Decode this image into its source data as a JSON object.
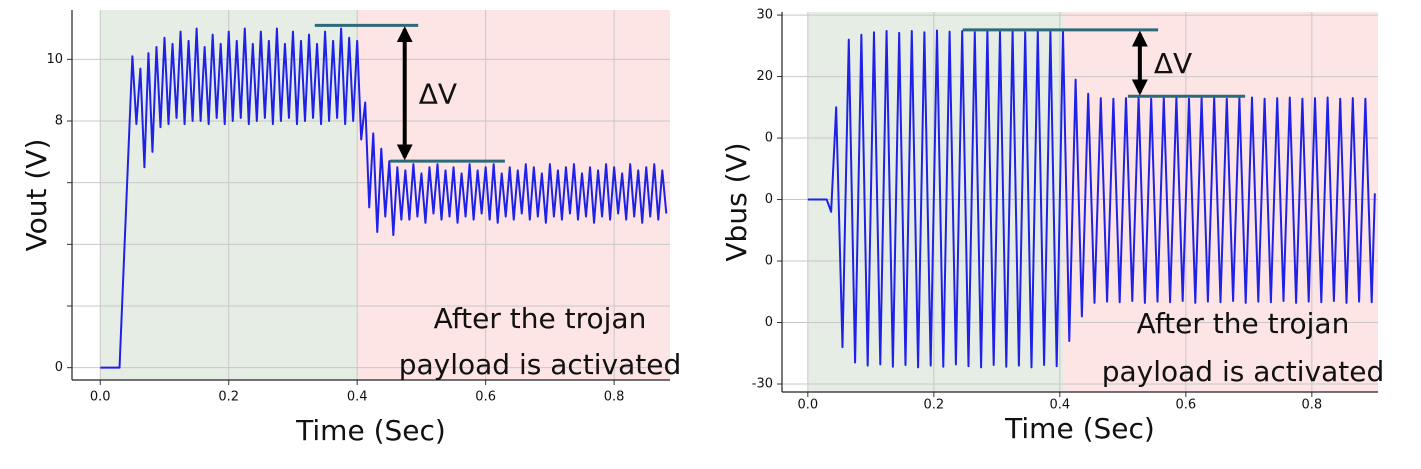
{
  "chart_data": [
    {
      "type": "line",
      "xlabel": "Time (Sec)",
      "ylabel": "Vout (V)",
      "xlim": [
        -0.044,
        0.887
      ],
      "ylim": [
        -0.4,
        11.6
      ],
      "xticks": [
        {
          "value": 0,
          "label": "0.0"
        },
        0.2,
        0.4,
        0.6,
        0.8
      ],
      "yticks": [
        0,
        {
          "value": 2,
          "label": null
        },
        {
          "value": 4,
          "label": null
        },
        {
          "value": 6,
          "label": null
        },
        8,
        10
      ],
      "grid": true,
      "regions": [
        {
          "x": [
            0,
            0.4
          ],
          "color": "#e6ede5"
        },
        {
          "x": [
            0.4,
            0.887
          ],
          "color": "#fde4e5"
        }
      ],
      "x": [
        0,
        0.03,
        0.045,
        0.05,
        0.05625,
        0.0625,
        0.06875,
        0.075,
        0.08125,
        0.0875,
        0.09375,
        0.1,
        0.10625,
        0.1125,
        0.11875,
        0.125,
        0.13125,
        0.1375,
        0.14375,
        0.15,
        0.15625,
        0.1625,
        0.16875,
        0.175,
        0.18125,
        0.1875,
        0.19375,
        0.2,
        0.20625,
        0.2125,
        0.21875,
        0.225,
        0.23125,
        0.2375,
        0.24375,
        0.25,
        0.25625,
        0.2625,
        0.26875,
        0.275,
        0.28125,
        0.2875,
        0.29375,
        0.3,
        0.30625,
        0.3125,
        0.31875,
        0.325,
        0.33125,
        0.3375,
        0.34375,
        0.35,
        0.35625,
        0.3625,
        0.36875,
        0.375,
        0.38125,
        0.3875,
        0.39375,
        0.4,
        0.40625,
        0.4125,
        0.41875,
        0.425,
        0.43125,
        0.4375,
        0.44375,
        0.45,
        0.45625,
        0.4625,
        0.46875,
        0.475,
        0.48125,
        0.4875,
        0.49375,
        0.5,
        0.50625,
        0.5125,
        0.51875,
        0.525,
        0.53125,
        0.5375,
        0.54375,
        0.55,
        0.55625,
        0.5625,
        0.56875,
        0.575,
        0.58125,
        0.5875,
        0.59375,
        0.6,
        0.60625,
        0.6125,
        0.61875,
        0.625,
        0.63125,
        0.6375,
        0.64375,
        0.65,
        0.65625,
        0.6625,
        0.66875,
        0.675,
        0.68125,
        0.6875,
        0.69375,
        0.7,
        0.70625,
        0.7125,
        0.71875,
        0.725,
        0.73125,
        0.7375,
        0.74375,
        0.75,
        0.75625,
        0.7625,
        0.76875,
        0.775,
        0.78125,
        0.7875,
        0.79375,
        0.8,
        0.80625,
        0.8125,
        0.81875,
        0.825,
        0.83125,
        0.8375,
        0.84375,
        0.85,
        0.85625,
        0.8625,
        0.86875,
        0.875,
        0.88125
      ],
      "series": [
        {
          "color": "#1f22e6",
          "values": [
            0,
            0,
            7.6,
            10.1,
            7.9,
            9.7,
            6.5,
            10.2,
            7.0,
            10.4,
            7.8,
            10.7,
            7.9,
            10.5,
            8.1,
            10.9,
            7.9,
            10.6,
            8.0,
            11.0,
            8.0,
            10.4,
            7.9,
            10.8,
            8.1,
            10.5,
            7.9,
            10.9,
            8.0,
            10.6,
            8.1,
            11.0,
            7.9,
            10.5,
            8.0,
            10.9,
            8.1,
            10.6,
            7.9,
            11.0,
            8.0,
            10.5,
            8.1,
            10.9,
            7.9,
            10.6,
            8.0,
            10.8,
            8.1,
            10.5,
            7.9,
            10.9,
            8.0,
            10.6,
            8.1,
            11.0,
            7.9,
            10.7,
            8.0,
            10.6,
            7.4,
            8.6,
            5.2,
            7.6,
            4.4,
            7.1,
            4.9,
            6.7,
            4.3,
            6.5,
            4.8,
            6.4,
            4.8,
            6.6,
            4.9,
            6.3,
            4.7,
            6.5,
            5.0,
            6.6,
            4.8,
            6.4,
            4.9,
            6.5,
            4.7,
            6.3,
            4.9,
            6.6,
            4.8,
            6.4,
            5.0,
            6.5,
            4.8,
            6.6,
            4.7,
            6.3,
            4.9,
            6.5,
            4.8,
            6.4,
            5.0,
            6.6,
            4.8,
            6.5,
            4.9,
            6.3,
            4.7,
            6.6,
            4.9,
            6.4,
            4.8,
            6.5,
            5.0,
            6.6,
            4.8,
            6.3,
            4.9,
            6.5,
            4.7,
            6.4,
            4.9,
            6.6,
            4.8,
            6.5,
            5.0,
            6.3,
            4.8,
            6.6,
            4.9,
            6.4,
            4.7,
            6.5,
            4.9,
            6.6,
            4.8,
            6.4,
            5.0
          ]
        }
      ],
      "annotation": {
        "levels": [
          {
            "y": 11.1,
            "x": [
              0.334,
              0.495
            ]
          },
          {
            "y": 6.7,
            "x": [
              0.451,
              0.63
            ]
          }
        ],
        "arrow_x": 0.474,
        "label": "ΔV",
        "note": [
          "After the trojan",
          "payload is activated"
        ]
      }
    },
    {
      "type": "line",
      "xlabel": "Time (Sec)",
      "ylabel": "Vbus (V)",
      "xlim": [
        -0.041,
        0.905
      ],
      "ylim": [
        -31.3,
        30.5
      ],
      "xticks": [
        {
          "value": 0,
          "label": "0.0"
        },
        0.2,
        0.4,
        0.6,
        0.8
      ],
      "yticks": [
        30,
        20,
        {
          "value": 10,
          "label": "0"
        },
        0,
        {
          "value": -10,
          "label": "0"
        },
        {
          "value": -20,
          "label": "0"
        },
        -30
      ],
      "grid": true,
      "regions": [
        {
          "x": [
            0,
            0.405
          ],
          "color": "#e6ede5"
        },
        {
          "x": [
            0.405,
            0.905
          ],
          "color": "#fde4e5"
        }
      ],
      "x": [
        0,
        0.03,
        0.037,
        0.045,
        0.055,
        0.065,
        0.075,
        0.085,
        0.095,
        0.105,
        0.115,
        0.125,
        0.135,
        0.145,
        0.155,
        0.165,
        0.175,
        0.185,
        0.195,
        0.205,
        0.215,
        0.225,
        0.235,
        0.245,
        0.255,
        0.265,
        0.275,
        0.285,
        0.295,
        0.305,
        0.315,
        0.325,
        0.335,
        0.345,
        0.355,
        0.365,
        0.375,
        0.385,
        0.395,
        0.405,
        0.415,
        0.425,
        0.435,
        0.445,
        0.455,
        0.465,
        0.475,
        0.485,
        0.495,
        0.505,
        0.515,
        0.525,
        0.535,
        0.545,
        0.555,
        0.565,
        0.575,
        0.585,
        0.595,
        0.605,
        0.615,
        0.625,
        0.635,
        0.645,
        0.655,
        0.665,
        0.675,
        0.685,
        0.695,
        0.705,
        0.715,
        0.725,
        0.735,
        0.745,
        0.755,
        0.765,
        0.775,
        0.785,
        0.795,
        0.805,
        0.815,
        0.825,
        0.835,
        0.845,
        0.855,
        0.865,
        0.875,
        0.885,
        0.895,
        0.9
      ],
      "series": [
        {
          "color": "#1f22e6",
          "values": [
            0,
            0,
            -2,
            15,
            -24,
            26,
            -26.5,
            26.8,
            -27,
            27.2,
            -26.8,
            27.4,
            -27.2,
            27.1,
            -26.9,
            27.4,
            -27.3,
            27.2,
            -27,
            27.5,
            -27.2,
            27.3,
            -26.8,
            27.4,
            -27.1,
            27.2,
            -27.3,
            27.5,
            -26.9,
            27.3,
            -27.2,
            27.4,
            -27,
            27.2,
            -27.3,
            27.5,
            -26.9,
            27.3,
            -27.1,
            27.3,
            -23,
            19.5,
            -19,
            17.2,
            -16.8,
            16.5,
            -16.6,
            16.4,
            -16.7,
            16.5,
            -16.5,
            16.6,
            -16.8,
            16.4,
            -16.6,
            16.5,
            -16.7,
            16.6,
            -16.5,
            16.4,
            -16.8,
            16.5,
            -16.6,
            16.6,
            -16.7,
            16.4,
            -16.5,
            16.5,
            -16.8,
            16.6,
            -16.6,
            16.4,
            -16.7,
            16.5,
            -16.5,
            16.6,
            -16.8,
            16.4,
            -16.6,
            16.5,
            -16.7,
            16.6,
            -16.5,
            16.4,
            -16.8,
            16.5,
            -16.6,
            16.4,
            -16.7,
            1
          ]
        }
      ],
      "annotation": {
        "levels": [
          {
            "y": 27.6,
            "x": [
              0.246,
              0.556
            ]
          },
          {
            "y": 16.8,
            "x": [
              0.508,
              0.694
            ]
          }
        ],
        "arrow_x": 0.527,
        "label": "ΔV",
        "note": [
          "After the trojan",
          "payload is activated"
        ]
      }
    }
  ]
}
